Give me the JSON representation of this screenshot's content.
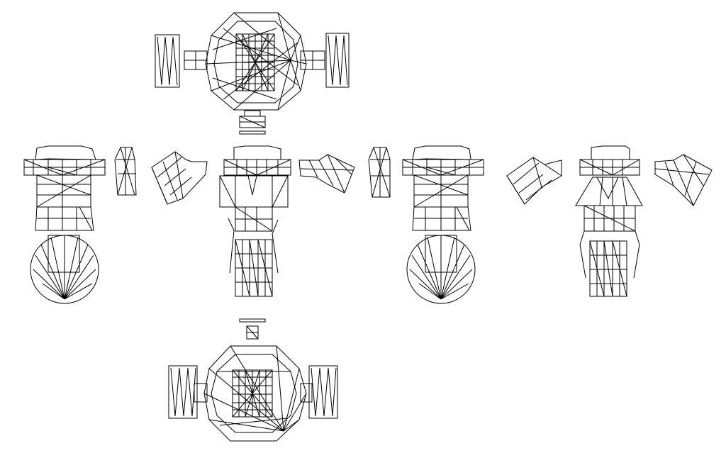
{
  "canvas": {
    "background_color": "#ffffff",
    "line_color": "#000000"
  }
}
